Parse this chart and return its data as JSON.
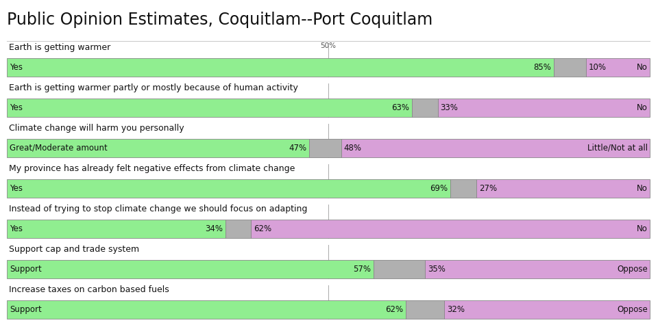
{
  "title": "Public Opinion Estimates, Coquitlam--Port Coquitlam",
  "title_fontsize": 17,
  "background_color": "#ffffff",
  "green_color": "#90EE90",
  "gray_color": "#b0b0b0",
  "purple_color": "#D8A0D8",
  "border_color": "#888888",
  "rows": [
    {
      "question": "Earth is getting warmer",
      "label_left": "Yes",
      "label_right": "No",
      "green_pct": 85,
      "gray_pct": 5,
      "purple_pct": 10,
      "green_text": "85%",
      "purple_text": "10%"
    },
    {
      "question": "Earth is getting warmer partly or mostly because of human activity",
      "label_left": "Yes",
      "label_right": "No",
      "green_pct": 63,
      "gray_pct": 4,
      "purple_pct": 33,
      "green_text": "63%",
      "purple_text": "33%"
    },
    {
      "question": "Climate change will harm you personally",
      "label_left": "Great/Moderate amount",
      "label_right": "Little/Not at all",
      "green_pct": 47,
      "gray_pct": 5,
      "purple_pct": 48,
      "green_text": "47%",
      "purple_text": "48%"
    },
    {
      "question": "My province has already felt negative effects from climate change",
      "label_left": "Yes",
      "label_right": "No",
      "green_pct": 69,
      "gray_pct": 4,
      "purple_pct": 27,
      "green_text": "69%",
      "purple_text": "27%"
    },
    {
      "question": "Instead of trying to stop climate change we should focus on adapting",
      "label_left": "Yes",
      "label_right": "No",
      "green_pct": 34,
      "gray_pct": 4,
      "purple_pct": 62,
      "green_text": "34%",
      "purple_text": "62%"
    },
    {
      "question": "Support cap and trade system",
      "label_left": "Support",
      "label_right": "Oppose",
      "green_pct": 57,
      "gray_pct": 8,
      "purple_pct": 35,
      "green_text": "57%",
      "purple_text": "35%"
    },
    {
      "question": "Increase taxes on carbon based fuels",
      "label_left": "Support",
      "label_right": "Oppose",
      "green_pct": 62,
      "gray_pct": 6,
      "purple_pct": 32,
      "green_text": "62%",
      "purple_text": "32%"
    }
  ],
  "text_fontsize": 8.5,
  "label_fontsize": 8.5,
  "question_fontsize": 9,
  "fifty_label": "50%"
}
